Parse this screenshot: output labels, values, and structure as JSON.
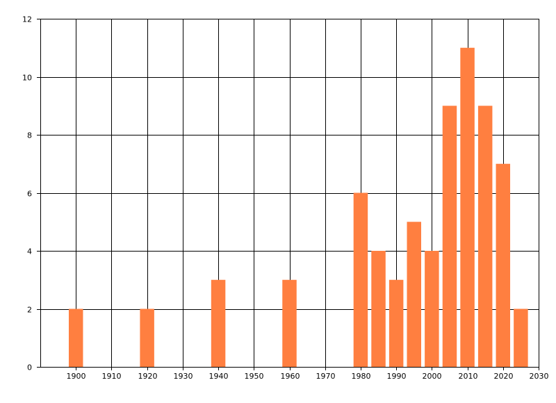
{
  "chart_data": {
    "type": "bar",
    "title": "",
    "xlabel": "",
    "ylabel": "",
    "x": [
      1900,
      1920,
      1940,
      1960,
      1980,
      1985,
      1990,
      1995,
      2000,
      2005,
      2010,
      2015,
      2020,
      2025
    ],
    "values": [
      2,
      2,
      3,
      3,
      6,
      4,
      3,
      5,
      4,
      9,
      11,
      9,
      7,
      2
    ],
    "xlim": [
      1890,
      2030
    ],
    "ylim": [
      0,
      12
    ],
    "x_ticks": [
      1900,
      1910,
      1920,
      1930,
      1940,
      1950,
      1960,
      1970,
      1980,
      1990,
      2000,
      2010,
      2020,
      2030
    ],
    "x_tick_labels": [
      "1900",
      "1910",
      "1920",
      "1930",
      "1940",
      "1950",
      "1960",
      "1970",
      "1980",
      "1990",
      "2000",
      "2010",
      "2020",
      "2030"
    ],
    "y_ticks": [
      0,
      2,
      4,
      6,
      8,
      10,
      12
    ],
    "y_tick_labels": [
      "0",
      "2",
      "4",
      "6",
      "8",
      "10",
      "12"
    ],
    "bar_width": 4,
    "grid": true,
    "legend": "none",
    "colors": {
      "bar": "#FF7F40",
      "grid": "#000000",
      "axis": "#000000",
      "text": "#000000",
      "background": "#FFFFFF"
    }
  }
}
